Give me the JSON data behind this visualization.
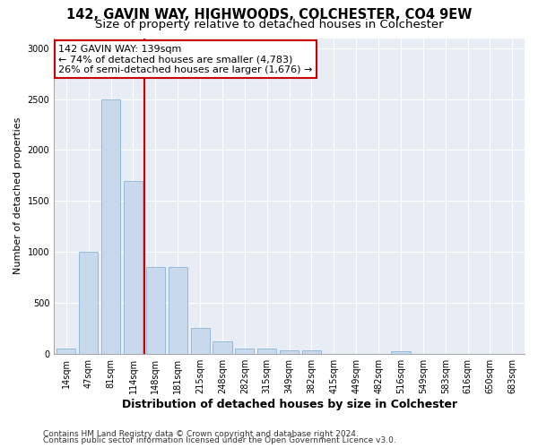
{
  "title1": "142, GAVIN WAY, HIGHWOODS, COLCHESTER, CO4 9EW",
  "title2": "Size of property relative to detached houses in Colchester",
  "xlabel": "Distribution of detached houses by size in Colchester",
  "ylabel": "Number of detached properties",
  "categories": [
    "14sqm",
    "47sqm",
    "81sqm",
    "114sqm",
    "148sqm",
    "181sqm",
    "215sqm",
    "248sqm",
    "282sqm",
    "315sqm",
    "349sqm",
    "382sqm",
    "415sqm",
    "449sqm",
    "482sqm",
    "516sqm",
    "549sqm",
    "583sqm",
    "616sqm",
    "650sqm",
    "683sqm"
  ],
  "values": [
    50,
    1000,
    2500,
    1700,
    850,
    850,
    250,
    120,
    50,
    50,
    30,
    30,
    0,
    0,
    0,
    25,
    0,
    0,
    0,
    0,
    0
  ],
  "bar_color": "#c8d9ee",
  "bar_edge_color": "#7baad0",
  "vline_x": 3.5,
  "vline_color": "#cc0000",
  "annotation_text": "142 GAVIN WAY: 139sqm\n← 74% of detached houses are smaller (4,783)\n26% of semi-detached houses are larger (1,676) →",
  "annotation_box_facecolor": "#ffffff",
  "annotation_box_edgecolor": "#cc0000",
  "ylim": [
    0,
    3100
  ],
  "yticks": [
    0,
    500,
    1000,
    1500,
    2000,
    2500,
    3000
  ],
  "bg_color": "#e8ecf4",
  "grid_color": "#ffffff",
  "footer1": "Contains HM Land Registry data © Crown copyright and database right 2024.",
  "footer2": "Contains public sector information licensed under the Open Government Licence v3.0.",
  "title1_fontsize": 10.5,
  "title2_fontsize": 9.5,
  "xlabel_fontsize": 9,
  "ylabel_fontsize": 8,
  "tick_fontsize": 7,
  "annotation_fontsize": 8,
  "footer_fontsize": 6.5
}
